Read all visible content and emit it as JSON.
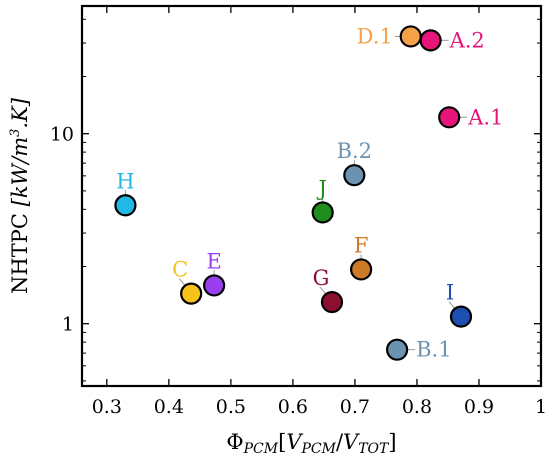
{
  "chart_data": {
    "type": "scatter",
    "title": "",
    "xlabel": "Φ_PCM[V_PCM/V_TOT]",
    "xlabel_parts": {
      "phi": "Φ",
      "phi_sub": "PCM",
      "open": "[",
      "v1": "V",
      "v1_sub": "PCM",
      "slash": "/",
      "v2": "V",
      "v2_sub": "TOT",
      "close": "]"
    },
    "ylabel": "NHTPC [kW/m³.K]",
    "ylabel_parts": {
      "name": "NHTPC ",
      "unit": "[kW/m",
      "exp": "3",
      "tail": ".K]"
    },
    "xlim": [
      0.26,
      1.0
    ],
    "ylim": [
      0.47,
      47
    ],
    "yscale": "log",
    "grid": false,
    "legend": "none",
    "x_ticks": [
      {
        "v": 0.3,
        "label": "0.3"
      },
      {
        "v": 0.4,
        "label": "0.4"
      },
      {
        "v": 0.5,
        "label": "0.5"
      },
      {
        "v": 0.6,
        "label": "0.6"
      },
      {
        "v": 0.7,
        "label": "0.7"
      },
      {
        "v": 0.8,
        "label": "0.8"
      },
      {
        "v": 0.9,
        "label": "0.9"
      },
      {
        "v": 1.0,
        "label": "1"
      }
    ],
    "y_ticks": [
      {
        "v": 1,
        "label": "1"
      },
      {
        "v": 10,
        "label": "10"
      }
    ],
    "points": [
      {
        "label": "A.1",
        "x": 0.852,
        "y": 12.2,
        "color": "#e6157a",
        "label_pos": "right"
      },
      {
        "label": "A.2",
        "x": 0.822,
        "y": 31.0,
        "color": "#e6157a",
        "label_pos": "right"
      },
      {
        "label": "B.1",
        "x": 0.768,
        "y": 0.73,
        "color": "#6b93b1",
        "label_pos": "right"
      },
      {
        "label": "B.2",
        "x": 0.699,
        "y": 6.05,
        "color": "#6b93b1",
        "label_pos": "above"
      },
      {
        "label": "C",
        "x": 0.436,
        "y": 1.44,
        "color": "#f5c31a",
        "label_pos": "above-left"
      },
      {
        "label": "D.1",
        "x": 0.79,
        "y": 32.5,
        "color": "#f5a14a",
        "label_pos": "left"
      },
      {
        "label": "E",
        "x": 0.473,
        "y": 1.59,
        "color": "#9a3ff0",
        "label_pos": "above"
      },
      {
        "label": "F",
        "x": 0.71,
        "y": 1.93,
        "color": "#cc7a26",
        "label_pos": "above"
      },
      {
        "label": "G",
        "x": 0.663,
        "y": 1.3,
        "color": "#8b0f2e",
        "label_pos": "above-left"
      },
      {
        "label": "H",
        "x": 0.33,
        "y": 4.2,
        "color": "#22b8e6",
        "label_pos": "above"
      },
      {
        "label": "I",
        "x": 0.871,
        "y": 1.09,
        "color": "#1c4fb0",
        "label_pos": "above-left"
      },
      {
        "label": "J",
        "x": 0.648,
        "y": 3.85,
        "color": "#1e8e1e",
        "label_pos": "above"
      }
    ]
  }
}
